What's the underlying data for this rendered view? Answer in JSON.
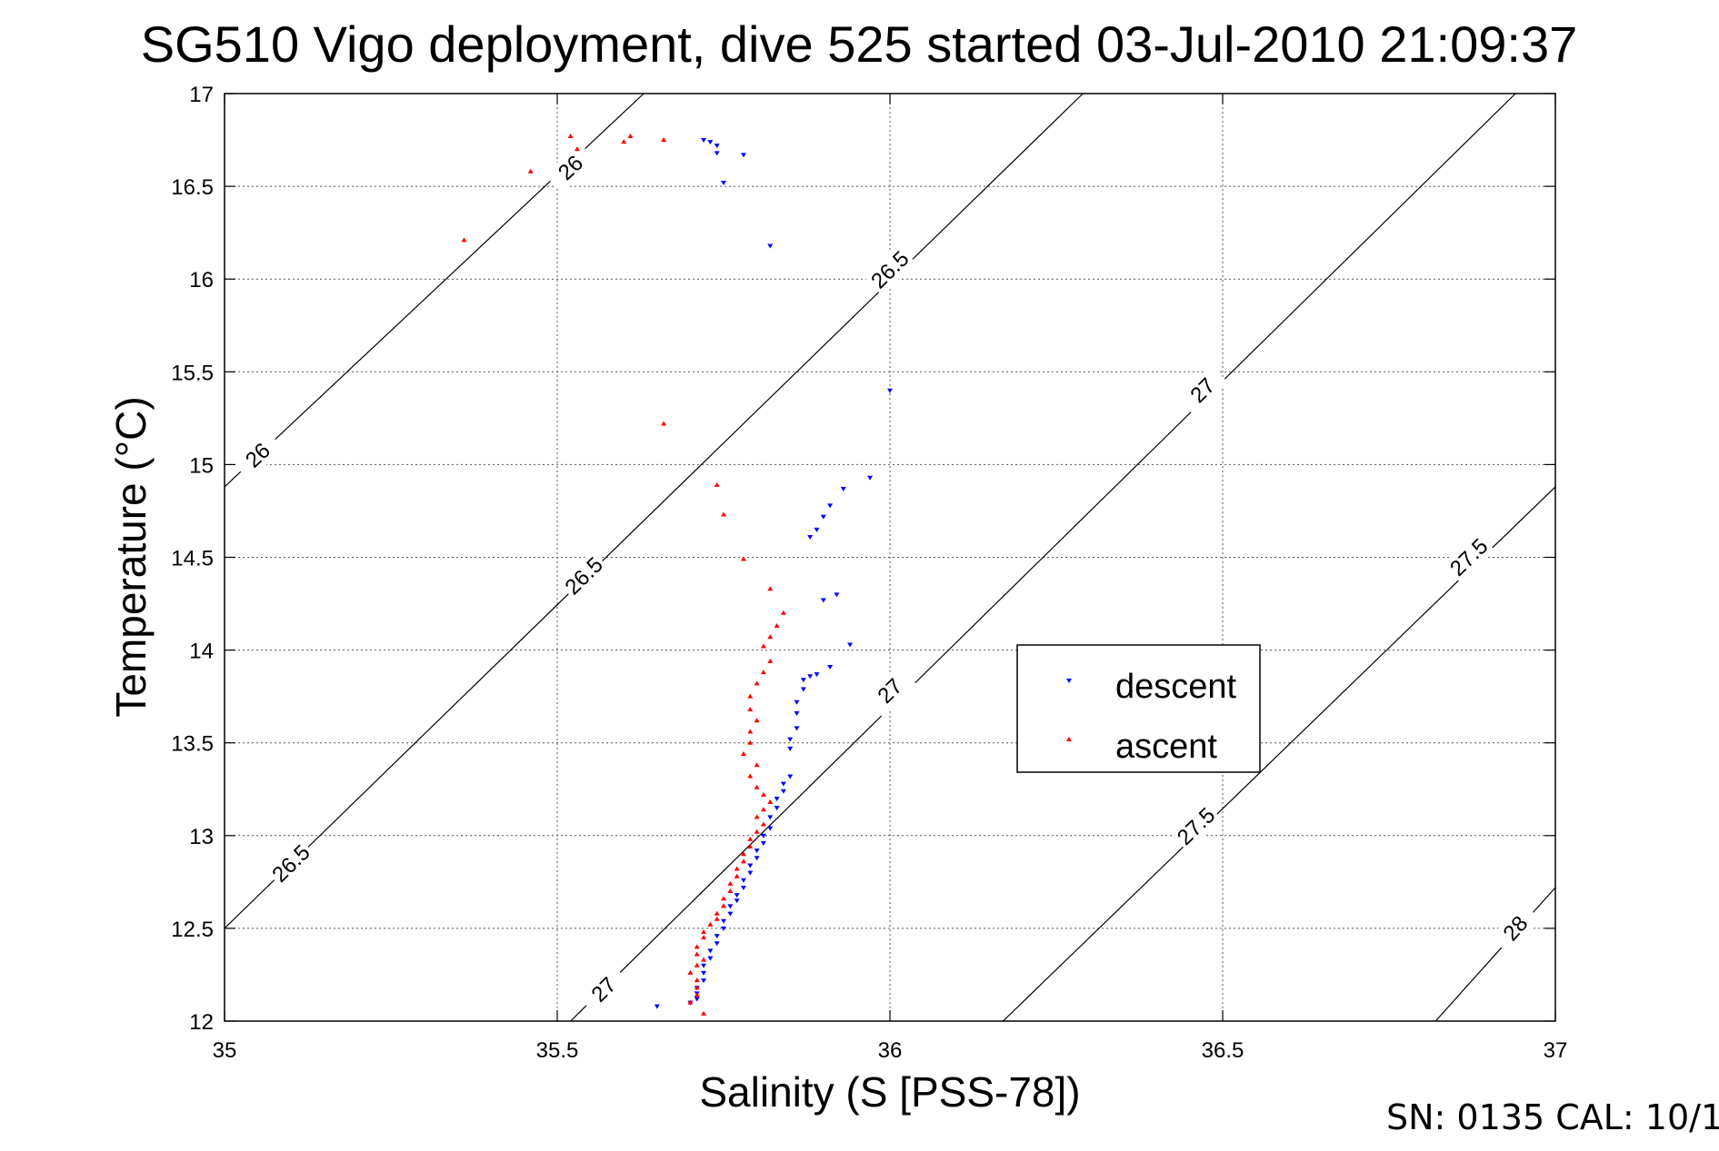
{
  "chart_data": {
    "type": "scatter",
    "title": "SG510 Vigo deployment, dive 525 started 03-Jul-2010 21:09:37",
    "xlabel": "Salinity (S [PSS-78])",
    "ylabel": "Temperature (°C)",
    "xlim": [
      35,
      37
    ],
    "ylim": [
      12,
      17
    ],
    "xticks": [
      35,
      35.5,
      36,
      36.5,
      37
    ],
    "xtick_labels": [
      "35",
      "35.5",
      "36",
      "36.5",
      "37"
    ],
    "yticks": [
      12,
      12.5,
      13,
      13.5,
      14,
      14.5,
      15,
      15.5,
      16,
      16.5,
      17
    ],
    "ytick_labels": [
      "12",
      "12.5",
      "13",
      "13.5",
      "14",
      "14.5",
      "15",
      "15.5",
      "16",
      "16.5",
      "17"
    ],
    "grid": true,
    "legend_position": "center-right",
    "series": [
      {
        "name": "descent",
        "marker": "down-triangle",
        "color": "#0000ff",
        "points": [
          [
            35.72,
            16.75
          ],
          [
            35.73,
            16.74
          ],
          [
            35.74,
            16.72
          ],
          [
            35.74,
            16.68
          ],
          [
            35.78,
            16.67
          ],
          [
            35.75,
            16.52
          ],
          [
            35.82,
            16.18
          ],
          [
            36.0,
            15.4
          ],
          [
            35.97,
            14.93
          ],
          [
            35.93,
            14.87
          ],
          [
            35.91,
            14.78
          ],
          [
            35.9,
            14.72
          ],
          [
            35.89,
            14.65
          ],
          [
            35.88,
            14.61
          ],
          [
            35.92,
            14.3
          ],
          [
            35.9,
            14.27
          ],
          [
            35.94,
            14.03
          ],
          [
            35.91,
            13.91
          ],
          [
            35.89,
            13.87
          ],
          [
            35.88,
            13.86
          ],
          [
            35.87,
            13.84
          ],
          [
            35.87,
            13.79
          ],
          [
            35.86,
            13.72
          ],
          [
            35.86,
            13.66
          ],
          [
            35.86,
            13.58
          ],
          [
            35.85,
            13.52
          ],
          [
            35.85,
            13.47
          ],
          [
            35.85,
            13.32
          ],
          [
            35.84,
            13.28
          ],
          [
            35.84,
            13.24
          ],
          [
            35.83,
            13.2
          ],
          [
            35.83,
            13.15
          ],
          [
            35.82,
            13.1
          ],
          [
            35.82,
            13.04
          ],
          [
            35.81,
            13.0
          ],
          [
            35.81,
            12.96
          ],
          [
            35.8,
            12.92
          ],
          [
            35.8,
            12.88
          ],
          [
            35.79,
            12.84
          ],
          [
            35.79,
            12.8
          ],
          [
            35.78,
            12.76
          ],
          [
            35.78,
            12.72
          ],
          [
            35.77,
            12.68
          ],
          [
            35.77,
            12.65
          ],
          [
            35.76,
            12.62
          ],
          [
            35.76,
            12.58
          ],
          [
            35.75,
            12.54
          ],
          [
            35.75,
            12.5
          ],
          [
            35.74,
            12.46
          ],
          [
            35.74,
            12.42
          ],
          [
            35.73,
            12.38
          ],
          [
            35.73,
            12.34
          ],
          [
            35.72,
            12.3
          ],
          [
            35.72,
            12.26
          ],
          [
            35.72,
            12.22
          ],
          [
            35.71,
            12.18
          ],
          [
            35.71,
            12.15
          ],
          [
            35.71,
            12.12
          ],
          [
            35.7,
            12.1
          ],
          [
            35.65,
            12.08
          ]
        ]
      },
      {
        "name": "ascent",
        "marker": "up-triangle",
        "color": "#ff0000",
        "points": [
          [
            35.52,
            16.77
          ],
          [
            35.61,
            16.77
          ],
          [
            35.6,
            16.74
          ],
          [
            35.66,
            16.75
          ],
          [
            35.53,
            16.7
          ],
          [
            35.46,
            16.58
          ],
          [
            35.36,
            16.21
          ],
          [
            35.66,
            15.22
          ],
          [
            35.74,
            14.89
          ],
          [
            35.75,
            14.73
          ],
          [
            35.78,
            14.49
          ],
          [
            35.82,
            14.33
          ],
          [
            35.84,
            14.2
          ],
          [
            35.83,
            14.13
          ],
          [
            35.82,
            14.07
          ],
          [
            35.81,
            14.02
          ],
          [
            35.82,
            13.94
          ],
          [
            35.81,
            13.88
          ],
          [
            35.8,
            13.82
          ],
          [
            35.79,
            13.75
          ],
          [
            35.79,
            13.68
          ],
          [
            35.8,
            13.62
          ],
          [
            35.79,
            13.56
          ],
          [
            35.79,
            13.5
          ],
          [
            35.78,
            13.44
          ],
          [
            35.8,
            13.38
          ],
          [
            35.79,
            13.32
          ],
          [
            35.8,
            13.26
          ],
          [
            35.81,
            13.22
          ],
          [
            35.82,
            13.18
          ],
          [
            35.81,
            13.14
          ],
          [
            35.8,
            13.1
          ],
          [
            35.81,
            13.06
          ],
          [
            35.8,
            13.02
          ],
          [
            35.79,
            12.98
          ],
          [
            35.79,
            12.94
          ],
          [
            35.78,
            12.9
          ],
          [
            35.78,
            12.86
          ],
          [
            35.77,
            12.82
          ],
          [
            35.77,
            12.78
          ],
          [
            35.76,
            12.74
          ],
          [
            35.76,
            12.7
          ],
          [
            35.75,
            12.66
          ],
          [
            35.75,
            12.62
          ],
          [
            35.74,
            12.58
          ],
          [
            35.74,
            12.55
          ],
          [
            35.73,
            12.52
          ],
          [
            35.72,
            12.48
          ],
          [
            35.72,
            12.45
          ],
          [
            35.71,
            12.4
          ],
          [
            35.71,
            12.36
          ],
          [
            35.72,
            12.33
          ],
          [
            35.71,
            12.3
          ],
          [
            35.7,
            12.26
          ],
          [
            35.71,
            12.22
          ],
          [
            35.71,
            12.18
          ],
          [
            35.71,
            12.14
          ],
          [
            35.7,
            12.1
          ],
          [
            35.72,
            12.04
          ]
        ]
      }
    ],
    "density_contours": [
      {
        "label": "26",
        "line": [
          [
            35.0,
            14.88
          ],
          [
            35.63,
            17.0
          ]
        ],
        "label_positions": [
          [
            35.05,
            15.05
          ],
          [
            35.52,
            16.6
          ]
        ]
      },
      {
        "label": "26.5",
        "line": [
          [
            35.0,
            12.5
          ],
          [
            36.29,
            17.0
          ]
        ],
        "label_positions": [
          [
            35.1,
            12.85
          ],
          [
            35.54,
            14.4
          ],
          [
            36.0,
            16.05
          ]
        ]
      },
      {
        "label": "27",
        "line": [
          [
            35.52,
            12.0
          ],
          [
            36.94,
            17.0
          ]
        ],
        "label_positions": [
          [
            35.57,
            12.17
          ],
          [
            36.0,
            13.78
          ],
          [
            36.47,
            15.4
          ]
        ]
      },
      {
        "label": "27.5",
        "line": [
          [
            36.17,
            12.0
          ],
          [
            37.0,
            14.88
          ]
        ],
        "label_positions": [
          [
            36.46,
            13.05
          ],
          [
            36.87,
            14.5
          ]
        ]
      },
      {
        "label": "28",
        "line": [
          [
            36.82,
            12.0
          ],
          [
            37.0,
            12.72
          ]
        ],
        "label_positions": [
          [
            36.94,
            12.5
          ]
        ]
      }
    ]
  },
  "legend": {
    "descent": "descent",
    "ascent": "ascent"
  },
  "footer": {
    "text": "SN: 0135  CAL: 10/1"
  }
}
